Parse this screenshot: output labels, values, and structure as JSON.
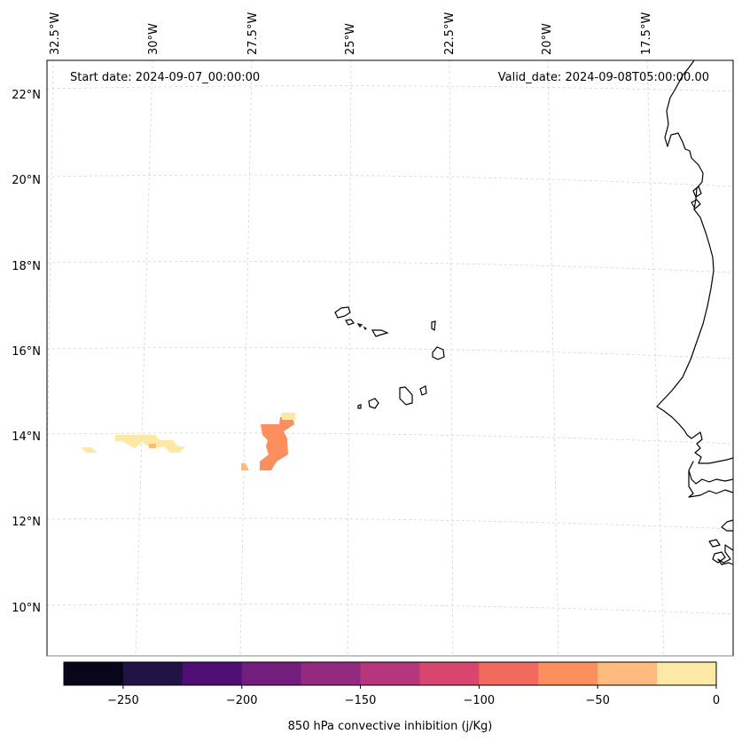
{
  "map": {
    "start_date_label": "Start date: 2024-09-07_00:00:00",
    "valid_date_label": "Valid_date: 2024-09-08T05:00:00.00",
    "longitude_labels": [
      "32.5°W",
      "30°W",
      "27.5°W",
      "25°W",
      "22.5°W",
      "20°W",
      "17.5°W"
    ],
    "latitude_labels": [
      "22°N",
      "20°N",
      "18°N",
      "16°N",
      "14°N",
      "12°N",
      "10°N"
    ],
    "features": [
      "coastline-west-africa",
      "cape-verde-islands"
    ],
    "field_shading": [
      {
        "region": "near 14°N, 26.5°W",
        "value_band": [
          -75,
          -50
        ]
      },
      {
        "region": "near 14°N, 30°W",
        "value_band": [
          -25,
          0
        ]
      },
      {
        "region": "near 13.5°N, 31.5°W",
        "value_band": [
          -25,
          0
        ]
      }
    ]
  },
  "colorbar": {
    "title": "850 hPa convective inhibition (j/Kg)",
    "tick_labels": [
      "−250",
      "−200",
      "−150",
      "−100",
      "−50",
      "0"
    ],
    "tick_values": [
      -250,
      -200,
      -150,
      -100,
      -50,
      0
    ],
    "range": [
      -275,
      0
    ],
    "bin_colors": [
      "#07061b",
      "#211346",
      "#4e0e73",
      "#731e7e",
      "#932a80",
      "#b5367b",
      "#d8456f",
      "#f16a5d",
      "#fd8e5e",
      "#febb80",
      "#fde9a5"
    ]
  }
}
